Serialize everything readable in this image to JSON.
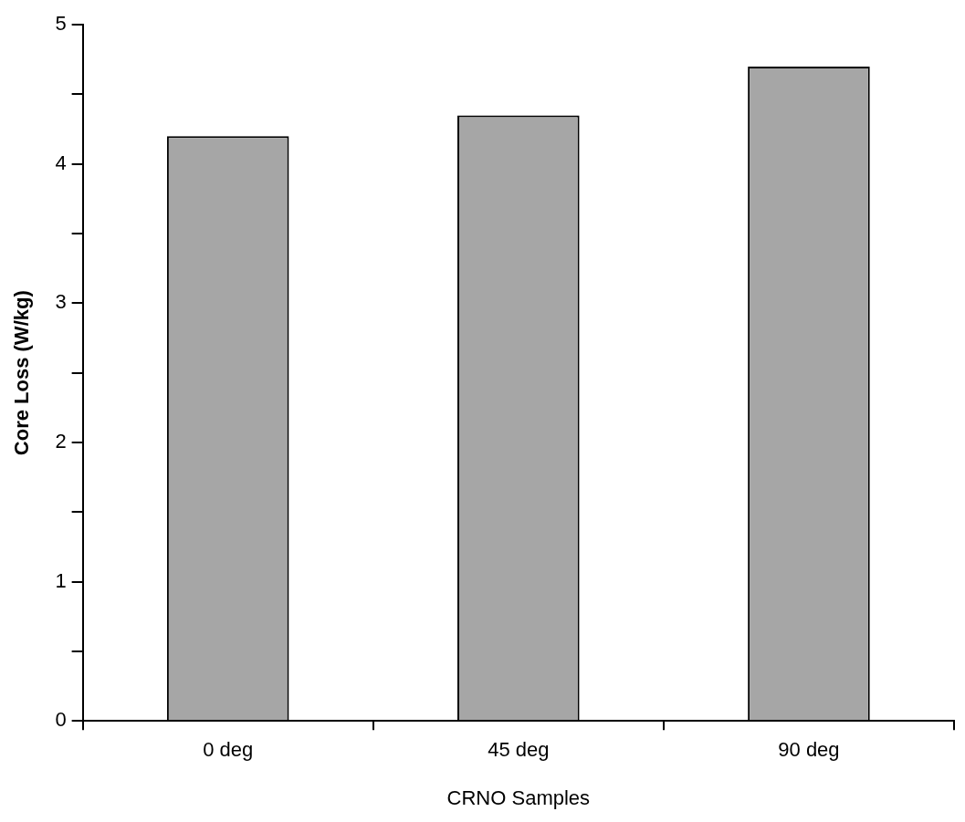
{
  "chart_data": {
    "type": "bar",
    "xlabel": "CRNO Samples",
    "ylabel": "Core Loss (W/kg)",
    "categories": [
      "0 deg",
      "45 deg",
      "90 deg"
    ],
    "values": [
      4.2,
      4.35,
      4.7
    ],
    "color": "#a6a6a6",
    "ylim": [
      0,
      5
    ],
    "yticks": [
      0,
      {
        "value": 0.5,
        "label": null
      },
      1,
      {
        "value": 1.5,
        "label": null
      },
      2,
      {
        "value": 2.5,
        "label": null
      },
      3,
      {
        "value": 3.5,
        "label": null
      },
      4,
      {
        "value": 4.5,
        "label": null
      },
      5
    ],
    "grid": false,
    "legend": false
  }
}
